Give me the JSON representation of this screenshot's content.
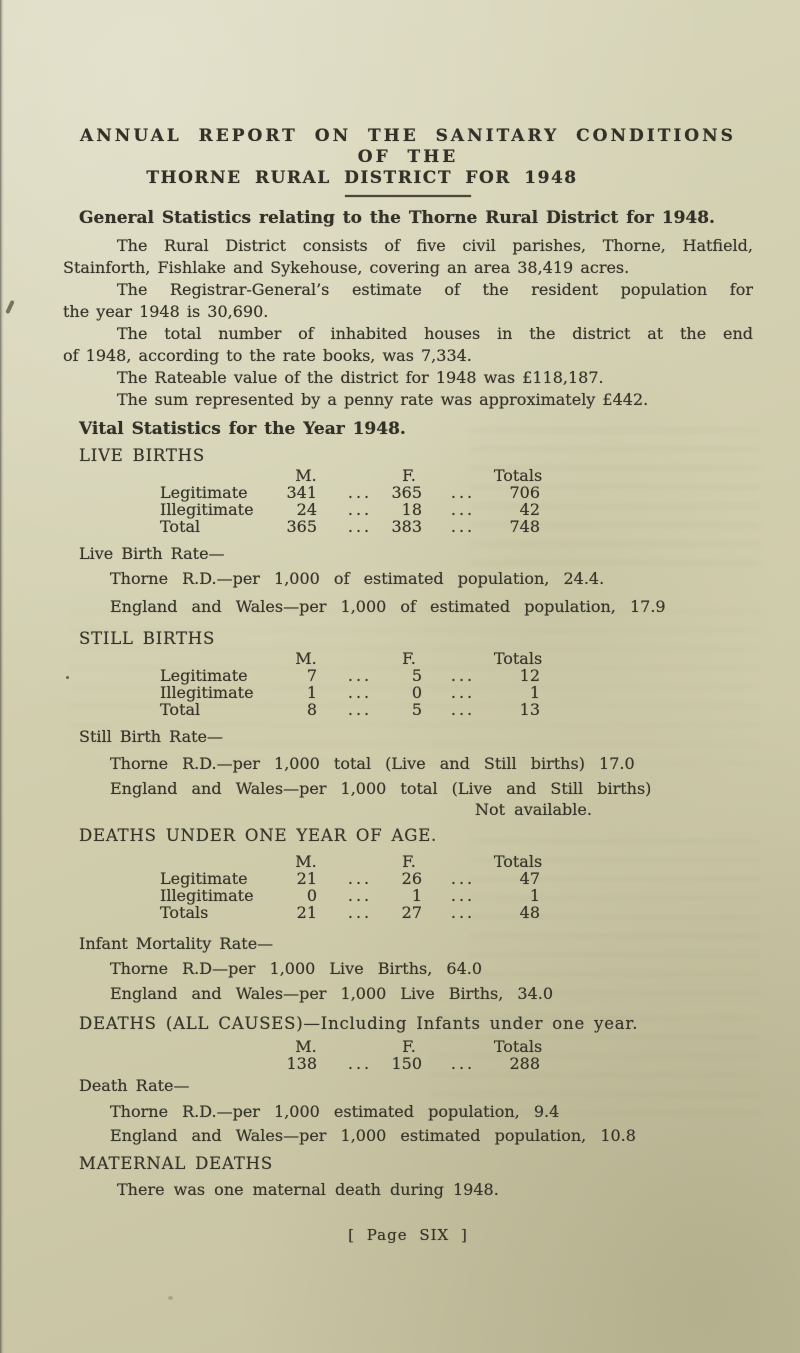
{
  "page": {
    "title_line1": "ANNUAL REPORT ON THE SANITARY CONDITIONS OF THE",
    "title_line2": "THORNE RURAL DISTRICT FOR 1948",
    "footer_text": "[ Page SIX ]",
    "paper_color": "#d1ceae",
    "ink_color": "#37352a"
  },
  "general_statistics": {
    "heading": "General Statistics relating to the Thorne Rural District for 1948.",
    "paragraphs": [
      {
        "lines": [
          "The Rural District consists of five civil parishes, Thorne, Hatfield,",
          "Stainforth, Fishlake and Sykehouse, covering an area 38,419 acres."
        ]
      },
      {
        "lines": [
          "The Registrar-General’s estimate of the resident population for",
          "the year 1948 is 30,690."
        ]
      },
      {
        "lines": [
          "The total number of inhabited houses in the district at the end",
          "of 1948, according to the rate books, was 7,334."
        ]
      },
      {
        "lines": [
          "The Rateable value of the district for 1948 was £118,187."
        ]
      },
      {
        "lines": [
          "The sum represented by a penny rate was approximately £442."
        ]
      }
    ]
  },
  "vital_statistics": {
    "heading": "Vital Statistics for the Year 1948.",
    "dots": "...",
    "live_births": {
      "heading": "LIVE BIRTHS",
      "columns": [
        "M.",
        "F.",
        "Totals"
      ],
      "rows": [
        {
          "label": "Legitimate",
          "m": "341",
          "f": "365",
          "total": "706"
        },
        {
          "label": "Illegitimate",
          "m": "24",
          "f": "18",
          "total": "42"
        },
        {
          "label": "Total",
          "m": "365",
          "f": "383",
          "total": "748"
        }
      ],
      "rate_heading": "Live Birth Rate—",
      "rate_lines": [
        "Thorne R.D.—per 1,000 of estimated population, 24.4.",
        "England and Wales—per 1,000 of estimated population, 17.9"
      ]
    },
    "still_births": {
      "heading": "STILL BIRTHS",
      "columns": [
        "M.",
        "F.",
        "Totals"
      ],
      "rows": [
        {
          "label": "Legitimate",
          "m": "7",
          "f": "5",
          "total": "12"
        },
        {
          "label": "Illegitimate",
          "m": "1",
          "f": "0",
          "total": "1"
        },
        {
          "label": "Total",
          "m": "8",
          "f": "5",
          "total": "13"
        }
      ],
      "rate_heading": "Still Birth Rate—",
      "rate_lines": [
        "Thorne R.D.—per 1,000 total (Live and Still births) 17.0",
        "England and Wales—per 1,000 total (Live and Still births)"
      ],
      "rate_note": "Not available."
    },
    "deaths_under_one": {
      "heading": "DEATHS UNDER ONE YEAR OF AGE.",
      "columns": [
        "M.",
        "F.",
        "Totals"
      ],
      "rows": [
        {
          "label": "Legitimate",
          "m": "21",
          "f": "26",
          "total": "47"
        },
        {
          "label": "Illegitimate",
          "m": "0",
          "f": "1",
          "total": "1"
        },
        {
          "label": "Totals",
          "m": "21",
          "f": "27",
          "total": "48"
        }
      ],
      "rate_heading": "Infant Mortality Rate—",
      "rate_lines": [
        "Thorne R.D—per 1,000 Live Births, 64.0",
        "England and Wales—per 1,000 Live Births, 34.0"
      ]
    },
    "deaths_all_causes": {
      "heading": "DEATHS (ALL CAUSES)—Including Infants under one year.",
      "columns": [
        "M.",
        "F.",
        "Totals"
      ],
      "row": {
        "m": "138",
        "f": "150",
        "total": "288"
      },
      "rate_heading": "Death Rate—",
      "rate_lines": [
        "Thorne R.D.—per 1,000 estimated population, 9.4",
        "England and Wales—per 1,000 estimated population, 10.8"
      ]
    },
    "maternal_deaths": {
      "heading": "MATERNAL DEATHS",
      "text": "There was one maternal death during 1948."
    }
  }
}
